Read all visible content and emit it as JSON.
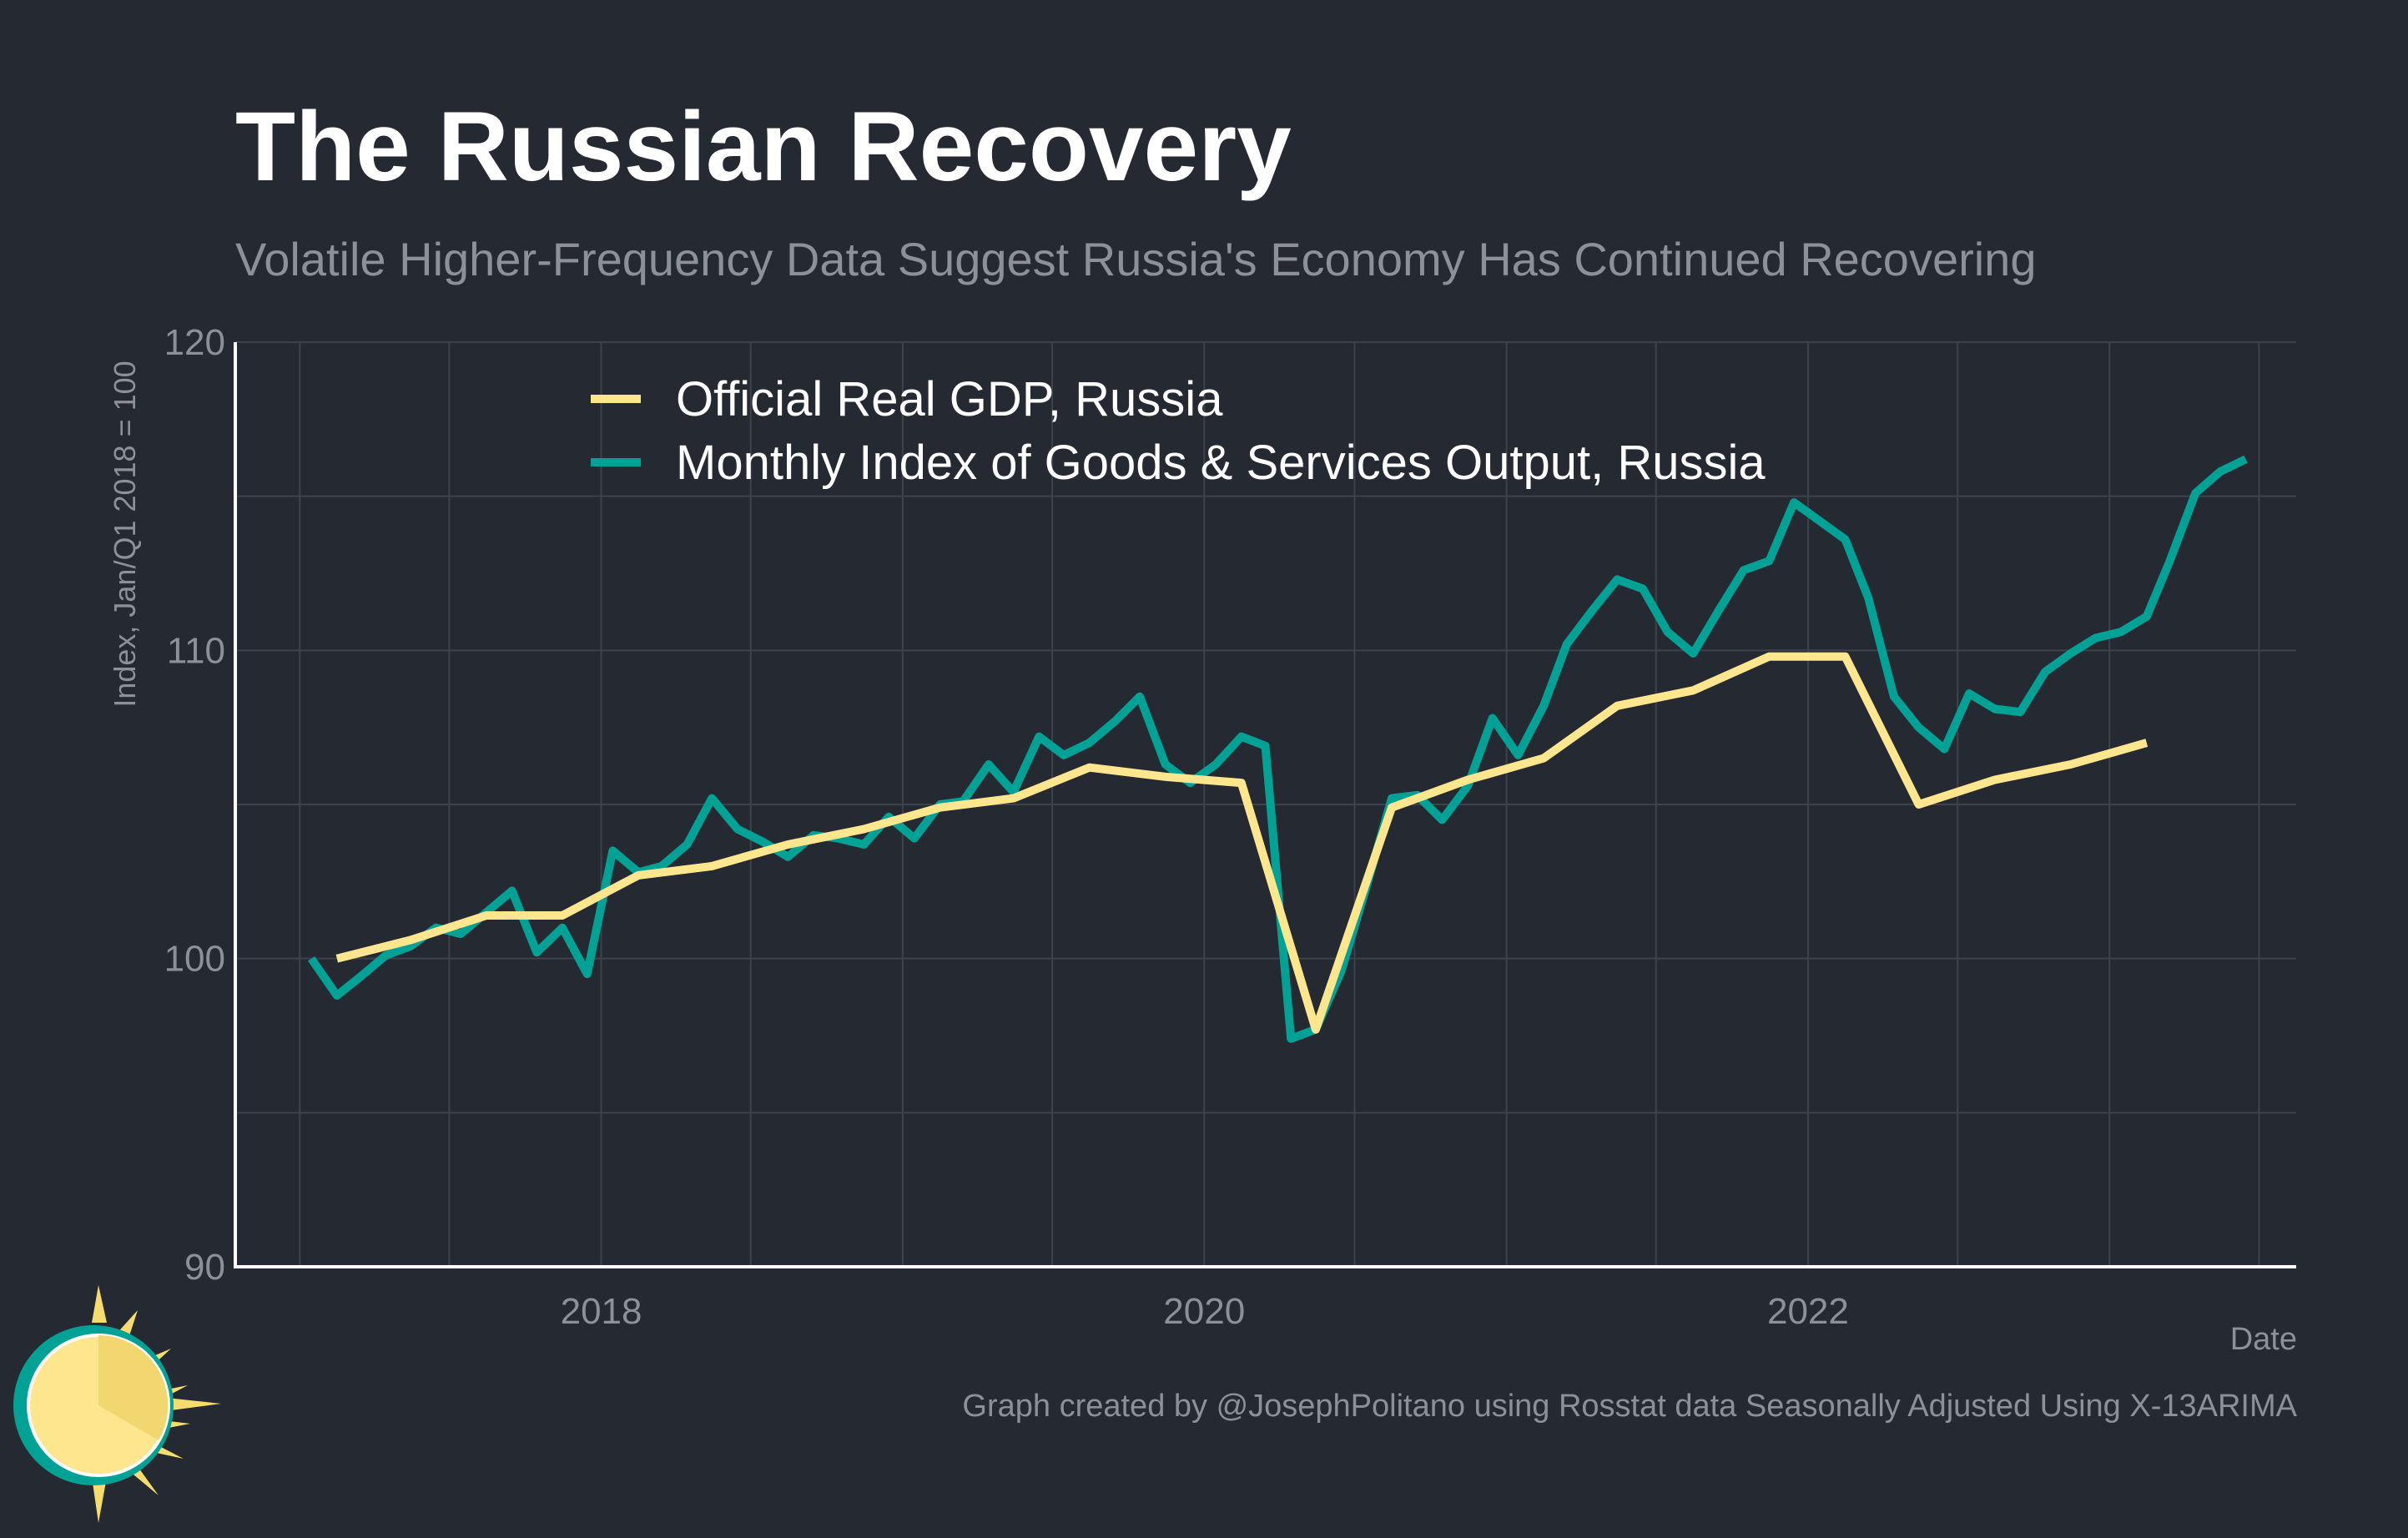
{
  "header": {
    "title": "The Russian Recovery",
    "subtitle": "Volatile Higher-Frequency Data Suggest Russia's Economy Has Continued Recovering"
  },
  "footer": {
    "credit": "Graph created by @JosephPolitano using Rosstat data Seasonally Adjusted Using X-13ARIMA"
  },
  "colors": {
    "background": "#252932",
    "gdp_line": "#fde68e",
    "monthly_line": "#00a296",
    "grid": "#3e424b",
    "axis": "#ffffff",
    "tick_text": "#8d9099"
  },
  "chart_data": {
    "type": "line",
    "title": "The Russian Recovery",
    "subtitle": "Volatile Higher-Frequency Data Suggest Russia's Economy Has Continued Recovering",
    "xlabel": "Date",
    "ylabel": "Index, Jan/Q1 2018 = 100",
    "ylim": [
      90,
      120
    ],
    "yticks": [
      90,
      100,
      110,
      120
    ],
    "xlim": [
      "2016-10-15",
      "2023-08-15"
    ],
    "xticks": [
      "2018",
      "2020",
      "2022"
    ],
    "grid": true,
    "legend": "top-left",
    "series": [
      {
        "name": "Official Real GDP, Russia",
        "color": "#fde68e",
        "points": [
          [
            "2017-02-15",
            100.0
          ],
          [
            "2017-05-15",
            100.6
          ],
          [
            "2017-08-15",
            101.4
          ],
          [
            "2017-11-15",
            101.4
          ],
          [
            "2018-02-15",
            102.7
          ],
          [
            "2018-05-15",
            103.0
          ],
          [
            "2018-08-15",
            103.7
          ],
          [
            "2018-11-15",
            104.2
          ],
          [
            "2019-02-15",
            104.9
          ],
          [
            "2019-05-15",
            105.2
          ],
          [
            "2019-08-15",
            106.2
          ],
          [
            "2019-11-15",
            105.9
          ],
          [
            "2020-02-15",
            105.7
          ],
          [
            "2020-05-15",
            97.7
          ],
          [
            "2020-08-15",
            104.9
          ],
          [
            "2020-11-15",
            105.8
          ],
          [
            "2021-02-15",
            106.5
          ],
          [
            "2021-05-15",
            108.2
          ],
          [
            "2021-08-15",
            108.7
          ],
          [
            "2021-11-15",
            109.8
          ],
          [
            "2022-02-15",
            109.8
          ],
          [
            "2022-05-15",
            105.0
          ],
          [
            "2022-08-15",
            105.8
          ],
          [
            "2022-11-15",
            106.3
          ],
          [
            "2023-02-15",
            107.0
          ]
        ]
      },
      {
        "name": "Monthly Index of Goods & Services Output, Russia",
        "color": "#00a296",
        "points": [
          [
            "2017-01-15",
            100.0
          ],
          [
            "2017-02-15",
            98.8
          ],
          [
            "2017-03-15",
            99.4
          ],
          [
            "2017-04-15",
            100.1
          ],
          [
            "2017-05-15",
            100.4
          ],
          [
            "2017-06-15",
            101.0
          ],
          [
            "2017-07-15",
            100.8
          ],
          [
            "2017-08-15",
            101.5
          ],
          [
            "2017-09-15",
            102.2
          ],
          [
            "2017-10-15",
            100.2
          ],
          [
            "2017-11-15",
            101.0
          ],
          [
            "2017-12-15",
            99.5
          ],
          [
            "2018-01-15",
            103.5
          ],
          [
            "2018-02-15",
            102.8
          ],
          [
            "2018-03-15",
            103.0
          ],
          [
            "2018-04-15",
            103.7
          ],
          [
            "2018-05-15",
            105.2
          ],
          [
            "2018-06-15",
            104.2
          ],
          [
            "2018-07-15",
            103.8
          ],
          [
            "2018-08-15",
            103.3
          ],
          [
            "2018-09-15",
            104.0
          ],
          [
            "2018-10-15",
            103.9
          ],
          [
            "2018-11-15",
            103.7
          ],
          [
            "2018-12-15",
            104.6
          ],
          [
            "2019-01-15",
            103.9
          ],
          [
            "2019-02-15",
            105.0
          ],
          [
            "2019-03-15",
            105.1
          ],
          [
            "2019-04-15",
            106.3
          ],
          [
            "2019-05-15",
            105.4
          ],
          [
            "2019-06-15",
            107.2
          ],
          [
            "2019-07-15",
            106.6
          ],
          [
            "2019-08-15",
            107.0
          ],
          [
            "2019-09-15",
            107.7
          ],
          [
            "2019-10-15",
            108.5
          ],
          [
            "2019-11-15",
            106.3
          ],
          [
            "2019-12-15",
            105.7
          ],
          [
            "2020-01-15",
            106.3
          ],
          [
            "2020-02-15",
            107.2
          ],
          [
            "2020-03-15",
            106.9
          ],
          [
            "2020-04-15",
            97.4
          ],
          [
            "2020-05-15",
            97.7
          ],
          [
            "2020-06-15",
            99.6
          ],
          [
            "2020-07-15",
            102.3
          ],
          [
            "2020-08-15",
            105.2
          ],
          [
            "2020-09-15",
            105.3
          ],
          [
            "2020-10-15",
            104.5
          ],
          [
            "2020-11-15",
            105.6
          ],
          [
            "2020-12-15",
            107.8
          ],
          [
            "2021-01-15",
            106.6
          ],
          [
            "2021-02-15",
            108.2
          ],
          [
            "2021-03-15",
            110.2
          ],
          [
            "2021-04-15",
            111.3
          ],
          [
            "2021-05-15",
            112.3
          ],
          [
            "2021-06-15",
            112.0
          ],
          [
            "2021-07-15",
            110.6
          ],
          [
            "2021-08-15",
            109.9
          ],
          [
            "2021-09-15",
            111.3
          ],
          [
            "2021-10-15",
            112.6
          ],
          [
            "2021-11-15",
            112.9
          ],
          [
            "2021-12-15",
            114.8
          ],
          [
            "2022-01-15",
            114.2
          ],
          [
            "2022-02-15",
            113.6
          ],
          [
            "2022-03-15",
            111.7
          ],
          [
            "2022-04-15",
            108.5
          ],
          [
            "2022-05-15",
            107.5
          ],
          [
            "2022-06-15",
            106.8
          ],
          [
            "2022-07-15",
            108.6
          ],
          [
            "2022-08-15",
            108.1
          ],
          [
            "2022-09-15",
            108.0
          ],
          [
            "2022-10-15",
            109.3
          ],
          [
            "2022-11-15",
            109.9
          ],
          [
            "2022-12-15",
            110.4
          ],
          [
            "2023-01-15",
            110.6
          ],
          [
            "2023-02-15",
            111.1
          ],
          [
            "2023-03-15",
            112.9
          ],
          [
            "2023-04-15",
            115.1
          ],
          [
            "2023-05-15",
            115.8
          ],
          [
            "2023-06-15",
            116.2
          ]
        ]
      }
    ]
  }
}
